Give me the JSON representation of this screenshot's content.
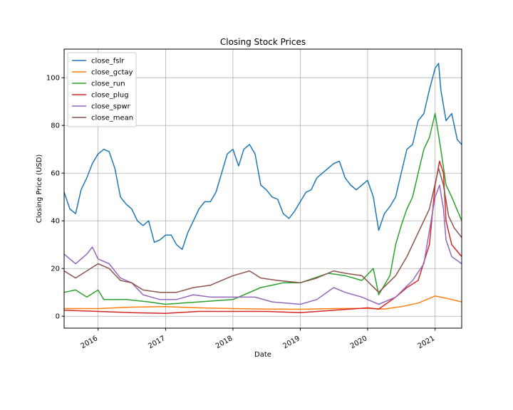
{
  "chart_data": {
    "type": "line",
    "title": "Closing Stock Prices",
    "xlabel": "Date",
    "ylabel": "Closing Price (USD)",
    "xlim": [
      "2015-07-01",
      "2021-05-25"
    ],
    "ylim": [
      -5,
      112
    ],
    "grid": true,
    "legend_position": "top-left",
    "x_tick_labels": [
      "2016",
      "2017",
      "2018",
      "2019",
      "2020",
      "2021"
    ],
    "y_ticks": [
      0,
      20,
      40,
      60,
      80,
      100
    ],
    "series": [
      {
        "name": "close_fslr",
        "color": "#1f77b4",
        "points": [
          [
            "2015-07-01",
            52
          ],
          [
            "2015-08-01",
            45
          ],
          [
            "2015-09-01",
            43
          ],
          [
            "2015-10-01",
            53
          ],
          [
            "2015-11-01",
            58
          ],
          [
            "2015-12-01",
            64
          ],
          [
            "2016-01-01",
            68
          ],
          [
            "2016-02-01",
            70
          ],
          [
            "2016-03-01",
            69
          ],
          [
            "2016-04-01",
            62
          ],
          [
            "2016-05-01",
            50
          ],
          [
            "2016-06-01",
            47
          ],
          [
            "2016-07-01",
            45
          ],
          [
            "2016-08-01",
            40
          ],
          [
            "2016-09-01",
            38
          ],
          [
            "2016-10-01",
            40
          ],
          [
            "2016-11-01",
            31
          ],
          [
            "2016-12-01",
            32
          ],
          [
            "2017-01-01",
            34
          ],
          [
            "2017-02-01",
            34
          ],
          [
            "2017-03-01",
            30
          ],
          [
            "2017-04-01",
            28
          ],
          [
            "2017-05-01",
            35
          ],
          [
            "2017-06-01",
            40
          ],
          [
            "2017-07-01",
            45
          ],
          [
            "2017-08-01",
            48
          ],
          [
            "2017-09-01",
            48
          ],
          [
            "2017-10-01",
            52
          ],
          [
            "2017-11-01",
            60
          ],
          [
            "2017-12-01",
            68
          ],
          [
            "2018-01-01",
            70
          ],
          [
            "2018-02-01",
            63
          ],
          [
            "2018-03-01",
            70
          ],
          [
            "2018-04-01",
            72
          ],
          [
            "2018-05-01",
            68
          ],
          [
            "2018-06-01",
            55
          ],
          [
            "2018-07-01",
            53
          ],
          [
            "2018-08-01",
            50
          ],
          [
            "2018-09-01",
            49
          ],
          [
            "2018-10-01",
            43
          ],
          [
            "2018-11-01",
            41
          ],
          [
            "2018-12-01",
            44
          ],
          [
            "2019-01-01",
            48
          ],
          [
            "2019-02-01",
            52
          ],
          [
            "2019-03-01",
            53
          ],
          [
            "2019-04-01",
            58
          ],
          [
            "2019-05-01",
            60
          ],
          [
            "2019-06-01",
            62
          ],
          [
            "2019-07-01",
            64
          ],
          [
            "2019-08-01",
            65
          ],
          [
            "2019-09-01",
            58
          ],
          [
            "2019-10-01",
            55
          ],
          [
            "2019-11-01",
            53
          ],
          [
            "2019-12-01",
            55
          ],
          [
            "2020-01-01",
            57
          ],
          [
            "2020-02-01",
            50
          ],
          [
            "2020-03-01",
            36
          ],
          [
            "2020-04-01",
            43
          ],
          [
            "2020-05-01",
            46
          ],
          [
            "2020-06-01",
            50
          ],
          [
            "2020-07-01",
            60
          ],
          [
            "2020-08-01",
            70
          ],
          [
            "2020-09-01",
            72
          ],
          [
            "2020-10-01",
            82
          ],
          [
            "2020-11-01",
            85
          ],
          [
            "2020-12-01",
            95
          ],
          [
            "2021-01-01",
            104
          ],
          [
            "2021-01-20",
            106
          ],
          [
            "2021-02-01",
            95
          ],
          [
            "2021-03-01",
            82
          ],
          [
            "2021-04-01",
            85
          ],
          [
            "2021-05-01",
            74
          ],
          [
            "2021-05-25",
            72
          ]
        ]
      },
      {
        "name": "close_gctay",
        "color": "#ff7f0e",
        "points": [
          [
            "2015-07-01",
            3.2
          ],
          [
            "2016-01-01",
            3.2
          ],
          [
            "2016-07-01",
            3.8
          ],
          [
            "2017-01-01",
            4.0
          ],
          [
            "2017-07-01",
            3.5
          ],
          [
            "2018-01-01",
            3.2
          ],
          [
            "2018-07-01",
            3.0
          ],
          [
            "2019-01-01",
            2.9
          ],
          [
            "2019-07-01",
            3.2
          ],
          [
            "2020-01-01",
            3.3
          ],
          [
            "2020-04-01",
            3.0
          ],
          [
            "2020-07-01",
            4.0
          ],
          [
            "2020-10-01",
            5.5
          ],
          [
            "2021-01-01",
            8.5
          ],
          [
            "2021-02-01",
            8.0
          ],
          [
            "2021-04-01",
            7.0
          ],
          [
            "2021-05-25",
            6.0
          ]
        ]
      },
      {
        "name": "close_run",
        "color": "#2ca02c",
        "points": [
          [
            "2015-07-01",
            10
          ],
          [
            "2015-09-01",
            11
          ],
          [
            "2015-11-01",
            8
          ],
          [
            "2016-01-01",
            11
          ],
          [
            "2016-02-01",
            7
          ],
          [
            "2016-06-01",
            7
          ],
          [
            "2016-10-01",
            6
          ],
          [
            "2017-01-01",
            5
          ],
          [
            "2017-07-01",
            6
          ],
          [
            "2018-01-01",
            7
          ],
          [
            "2018-06-01",
            12
          ],
          [
            "2018-10-01",
            14
          ],
          [
            "2019-01-01",
            14
          ],
          [
            "2019-06-01",
            18
          ],
          [
            "2019-09-01",
            17
          ],
          [
            "2019-12-01",
            15
          ],
          [
            "2020-02-01",
            20
          ],
          [
            "2020-03-01",
            9
          ],
          [
            "2020-05-01",
            17
          ],
          [
            "2020-06-01",
            30
          ],
          [
            "2020-07-01",
            38
          ],
          [
            "2020-08-01",
            45
          ],
          [
            "2020-09-01",
            50
          ],
          [
            "2020-10-01",
            60
          ],
          [
            "2020-11-01",
            70
          ],
          [
            "2020-12-01",
            75
          ],
          [
            "2021-01-01",
            85
          ],
          [
            "2021-02-01",
            70
          ],
          [
            "2021-03-01",
            55
          ],
          [
            "2021-04-01",
            50
          ],
          [
            "2021-05-25",
            40
          ]
        ]
      },
      {
        "name": "close_plug",
        "color": "#d62728",
        "points": [
          [
            "2015-07-01",
            2.5
          ],
          [
            "2016-01-01",
            2.0
          ],
          [
            "2016-07-01",
            1.5
          ],
          [
            "2017-01-01",
            1.2
          ],
          [
            "2017-07-01",
            2.0
          ],
          [
            "2018-01-01",
            2.0
          ],
          [
            "2018-07-01",
            2.0
          ],
          [
            "2019-01-01",
            1.5
          ],
          [
            "2019-07-01",
            2.5
          ],
          [
            "2020-01-01",
            3.5
          ],
          [
            "2020-03-01",
            3.0
          ],
          [
            "2020-06-01",
            8.0
          ],
          [
            "2020-08-01",
            12
          ],
          [
            "2020-10-01",
            15
          ],
          [
            "2020-12-01",
            30
          ],
          [
            "2021-01-01",
            55
          ],
          [
            "2021-01-25",
            65
          ],
          [
            "2021-02-15",
            60
          ],
          [
            "2021-03-01",
            40
          ],
          [
            "2021-04-01",
            30
          ],
          [
            "2021-05-25",
            25
          ]
        ]
      },
      {
        "name": "close_spwr",
        "color": "#9467bd",
        "points": [
          [
            "2015-07-01",
            26
          ],
          [
            "2015-09-01",
            22
          ],
          [
            "2015-11-01",
            26
          ],
          [
            "2015-12-01",
            29
          ],
          [
            "2016-01-01",
            24
          ],
          [
            "2016-03-01",
            22
          ],
          [
            "2016-05-01",
            16
          ],
          [
            "2016-07-01",
            14
          ],
          [
            "2016-09-01",
            9
          ],
          [
            "2016-12-01",
            7
          ],
          [
            "2017-03-01",
            7
          ],
          [
            "2017-06-01",
            9
          ],
          [
            "2017-09-01",
            8
          ],
          [
            "2018-01-01",
            8
          ],
          [
            "2018-05-01",
            8
          ],
          [
            "2018-08-01",
            6
          ],
          [
            "2019-01-01",
            5
          ],
          [
            "2019-04-01",
            7
          ],
          [
            "2019-07-01",
            12
          ],
          [
            "2019-09-01",
            10
          ],
          [
            "2019-12-01",
            8
          ],
          [
            "2020-03-01",
            5
          ],
          [
            "2020-06-01",
            8
          ],
          [
            "2020-09-01",
            15
          ],
          [
            "2020-11-01",
            22
          ],
          [
            "2021-01-01",
            50
          ],
          [
            "2021-01-25",
            55
          ],
          [
            "2021-02-15",
            45
          ],
          [
            "2021-03-01",
            32
          ],
          [
            "2021-04-01",
            25
          ],
          [
            "2021-05-25",
            22
          ]
        ]
      },
      {
        "name": "close_mean",
        "color": "#8c564b",
        "points": [
          [
            "2015-07-01",
            19
          ],
          [
            "2015-09-01",
            16
          ],
          [
            "2015-11-01",
            19
          ],
          [
            "2016-01-01",
            22
          ],
          [
            "2016-03-01",
            20
          ],
          [
            "2016-05-01",
            15
          ],
          [
            "2016-07-01",
            14
          ],
          [
            "2016-09-01",
            11
          ],
          [
            "2016-12-01",
            10
          ],
          [
            "2017-03-01",
            10
          ],
          [
            "2017-06-01",
            12
          ],
          [
            "2017-09-01",
            13
          ],
          [
            "2018-01-01",
            17
          ],
          [
            "2018-04-01",
            19
          ],
          [
            "2018-06-01",
            16
          ],
          [
            "2018-09-01",
            15
          ],
          [
            "2019-01-01",
            14
          ],
          [
            "2019-04-01",
            16
          ],
          [
            "2019-07-01",
            19
          ],
          [
            "2019-09-01",
            18
          ],
          [
            "2019-12-01",
            17
          ],
          [
            "2020-03-01",
            10
          ],
          [
            "2020-06-01",
            17
          ],
          [
            "2020-08-01",
            25
          ],
          [
            "2020-10-01",
            35
          ],
          [
            "2020-12-01",
            45
          ],
          [
            "2021-01-20",
            62
          ],
          [
            "2021-02-15",
            55
          ],
          [
            "2021-03-15",
            42
          ],
          [
            "2021-04-15",
            37
          ],
          [
            "2021-05-25",
            33
          ]
        ]
      }
    ]
  }
}
